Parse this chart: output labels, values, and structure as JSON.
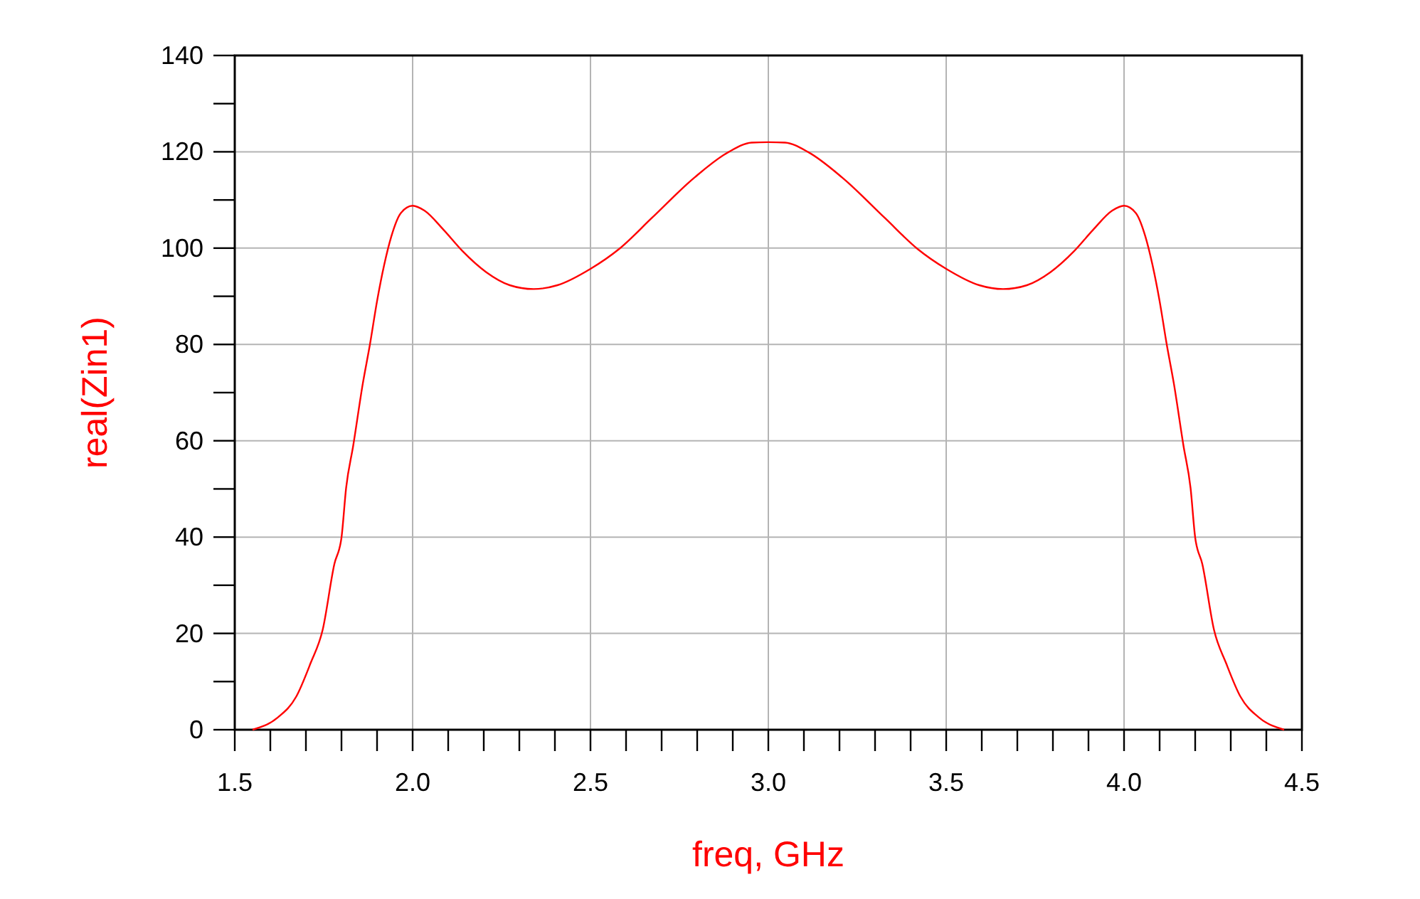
{
  "chart_data": {
    "type": "line",
    "xlabel": "freq, GHz",
    "ylabel": "real(Zin1)",
    "xlim": [
      1.5,
      4.5
    ],
    "ylim": [
      0,
      140
    ],
    "xticks": [
      1.5,
      {
        "value": 1.6,
        "label": null
      },
      {
        "value": 1.7,
        "label": null
      },
      {
        "value": 1.8,
        "label": null
      },
      {
        "value": 1.9,
        "label": null
      },
      {
        "value": 2.0,
        "label": "2.0"
      },
      {
        "value": 2.1,
        "label": null
      },
      {
        "value": 2.2,
        "label": null
      },
      {
        "value": 2.3,
        "label": null
      },
      {
        "value": 2.4,
        "label": null
      },
      2.5,
      {
        "value": 2.6,
        "label": null
      },
      {
        "value": 2.7,
        "label": null
      },
      {
        "value": 2.8,
        "label": null
      },
      {
        "value": 2.9,
        "label": null
      },
      {
        "value": 3.0,
        "label": "3.0"
      },
      {
        "value": 3.1,
        "label": null
      },
      {
        "value": 3.2,
        "label": null
      },
      {
        "value": 3.3,
        "label": null
      },
      {
        "value": 3.4,
        "label": null
      },
      3.5,
      {
        "value": 3.6,
        "label": null
      },
      {
        "value": 3.7,
        "label": null
      },
      {
        "value": 3.8,
        "label": null
      },
      {
        "value": 3.9,
        "label": null
      },
      {
        "value": 4.0,
        "label": "4.0"
      },
      {
        "value": 4.1,
        "label": null
      },
      {
        "value": 4.2,
        "label": null
      },
      {
        "value": 4.3,
        "label": null
      },
      {
        "value": 4.4,
        "label": null
      },
      4.5
    ],
    "yticks": [
      0,
      {
        "value": 10,
        "label": null
      },
      20,
      {
        "value": 30,
        "label": null
      },
      40,
      {
        "value": 50,
        "label": null
      },
      60,
      {
        "value": 70,
        "label": null
      },
      80,
      {
        "value": 90,
        "label": null
      },
      100,
      {
        "value": 110,
        "label": null
      },
      120,
      {
        "value": 130,
        "label": null
      },
      140
    ],
    "grid": true,
    "line_style": "solid",
    "marker": "none",
    "series": [
      {
        "color": "#ff0000",
        "x": [
          1.55,
          1.62,
          1.673,
          1.713,
          1.747,
          1.78,
          1.8,
          1.813,
          1.833,
          1.86,
          1.88,
          1.9,
          1.92,
          1.94,
          1.967,
          2.0,
          2.033,
          2.087,
          2.14,
          2.207,
          2.273,
          2.34,
          2.407,
          2.5,
          2.58,
          2.673,
          2.793,
          2.887,
          2.953,
          3.0,
          3.047,
          3.113,
          3.207,
          3.327,
          3.42,
          3.5,
          3.593,
          3.66,
          3.727,
          3.793,
          3.86,
          3.913,
          3.967,
          4.0,
          4.033,
          4.06,
          4.08,
          4.1,
          4.12,
          4.14,
          4.167,
          4.187,
          4.2,
          4.22,
          4.253,
          4.287,
          4.327,
          4.38,
          4.45
        ],
        "values": [
          0,
          2.5,
          6.9,
          13.8,
          20.7,
          34.4,
          39.9,
          50.2,
          59,
          71.9,
          80,
          89,
          96.5,
          102.4,
          107.3,
          108.8,
          107.8,
          103.8,
          99.4,
          95,
          92.3,
          91.5,
          92.3,
          95.7,
          99.8,
          106.3,
          114.7,
          119.9,
          121.9,
          122,
          121.9,
          119.9,
          114.7,
          106.3,
          99.8,
          95.7,
          92.3,
          91.5,
          92.3,
          95,
          99.4,
          103.8,
          107.8,
          108.8,
          107.3,
          102.4,
          96.5,
          89,
          80,
          71.9,
          59,
          50.2,
          39.9,
          34.4,
          20.7,
          13.8,
          6.9,
          2.5,
          0
        ]
      }
    ]
  }
}
